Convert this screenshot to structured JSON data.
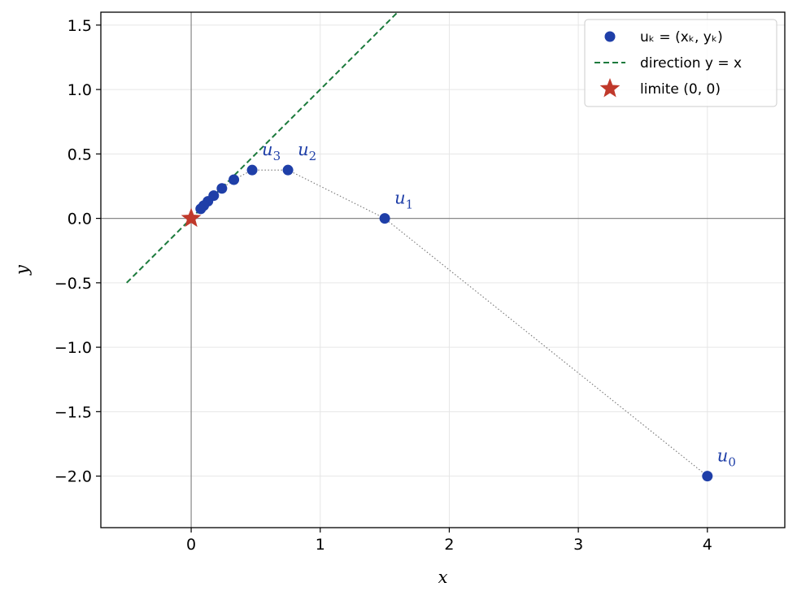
{
  "chart_data": {
    "type": "scatter",
    "title": "",
    "xlabel": "x",
    "ylabel": "y",
    "xlim": [
      -0.7,
      4.6
    ],
    "ylim": [
      -2.4,
      1.6
    ],
    "xticks": [
      0,
      1,
      2,
      3,
      4
    ],
    "xtick_labels": [
      "0",
      "1",
      "2",
      "3",
      "4"
    ],
    "yticks": [
      -2.0,
      -1.5,
      -1.0,
      -0.5,
      0.0,
      0.5,
      1.0,
      1.5
    ],
    "ytick_labels": [
      "−2.0",
      "−1.5",
      "−1.0",
      "−0.5",
      "0.0",
      "0.5",
      "1.0",
      "1.5"
    ],
    "grid": true,
    "legend_position": "top-right",
    "series": [
      {
        "name": "u_k = (x_k, y_k)",
        "legend_label": "uₖ = (xₖ, yₖ)",
        "kind": "points",
        "color": "#1f3fa8",
        "connected": "dotted",
        "connector_color": "#777777",
        "x": [
          4.0,
          1.5,
          0.75,
          0.4725,
          0.3308,
          0.2381,
          0.1746,
          0.1298,
          0.0975,
          0.0738
        ],
        "y": [
          -2.0,
          0.0,
          0.375,
          0.375,
          0.3003,
          0.2325,
          0.1765,
          0.1327,
          0.0993,
          0.0741
        ]
      },
      {
        "name": "direction y = x",
        "legend_label": "direction y = x",
        "kind": "line",
        "style": "dashed",
        "color": "#1b7a3c",
        "x": [
          -0.5,
          1.6
        ],
        "y": [
          -0.5,
          1.6
        ]
      },
      {
        "name": "limite (0, 0)",
        "legend_label": "limite (0, 0)",
        "kind": "star",
        "color": "#c0392b",
        "x": [
          0
        ],
        "y": [
          0
        ]
      }
    ],
    "annotations": [
      {
        "base": "u",
        "sub": "0",
        "x": 4.0,
        "y": -2.0
      },
      {
        "base": "u",
        "sub": "1",
        "x": 1.5,
        "y": 0.0
      },
      {
        "base": "u",
        "sub": "2",
        "x": 0.75,
        "y": 0.375
      },
      {
        "base": "u",
        "sub": "3",
        "x": 0.4725,
        "y": 0.375
      }
    ]
  }
}
